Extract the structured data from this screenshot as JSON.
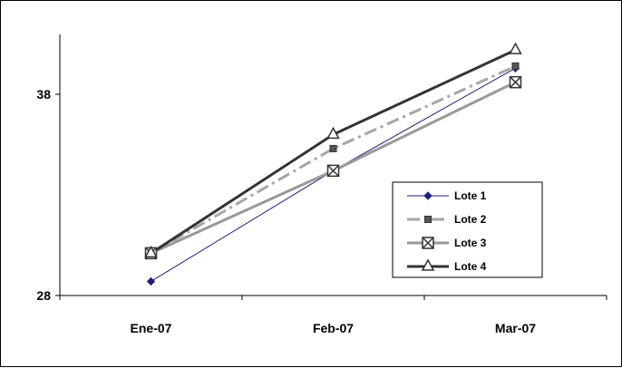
{
  "chart_data": {
    "type": "line",
    "categories": [
      "Ene-07",
      "Feb-07",
      "Mar-07"
    ],
    "ylim": [
      28,
      41
    ],
    "yticks": [
      28,
      38
    ],
    "grid": false,
    "legend_position": "bottom-right",
    "series": [
      {
        "name": "Lote 1",
        "values": [
          28.7,
          34.2,
          39.3
        ],
        "color": "#1f1f7a",
        "marker": "diamond",
        "dash": "solid",
        "width": 1
      },
      {
        "name": "Lote 2",
        "values": [
          30.1,
          35.3,
          39.4
        ],
        "color": "#a6a6a6",
        "marker": "square",
        "dash": "dash-dot",
        "width": 3
      },
      {
        "name": "Lote 3",
        "values": [
          30.1,
          34.2,
          38.6
        ],
        "color": "#999999",
        "marker": "square-x",
        "dash": "solid",
        "width": 3
      },
      {
        "name": "Lote 4",
        "values": [
          30.1,
          36.0,
          40.2
        ],
        "color": "#333333",
        "marker": "triangle",
        "dash": "solid",
        "width": 3
      }
    ]
  }
}
